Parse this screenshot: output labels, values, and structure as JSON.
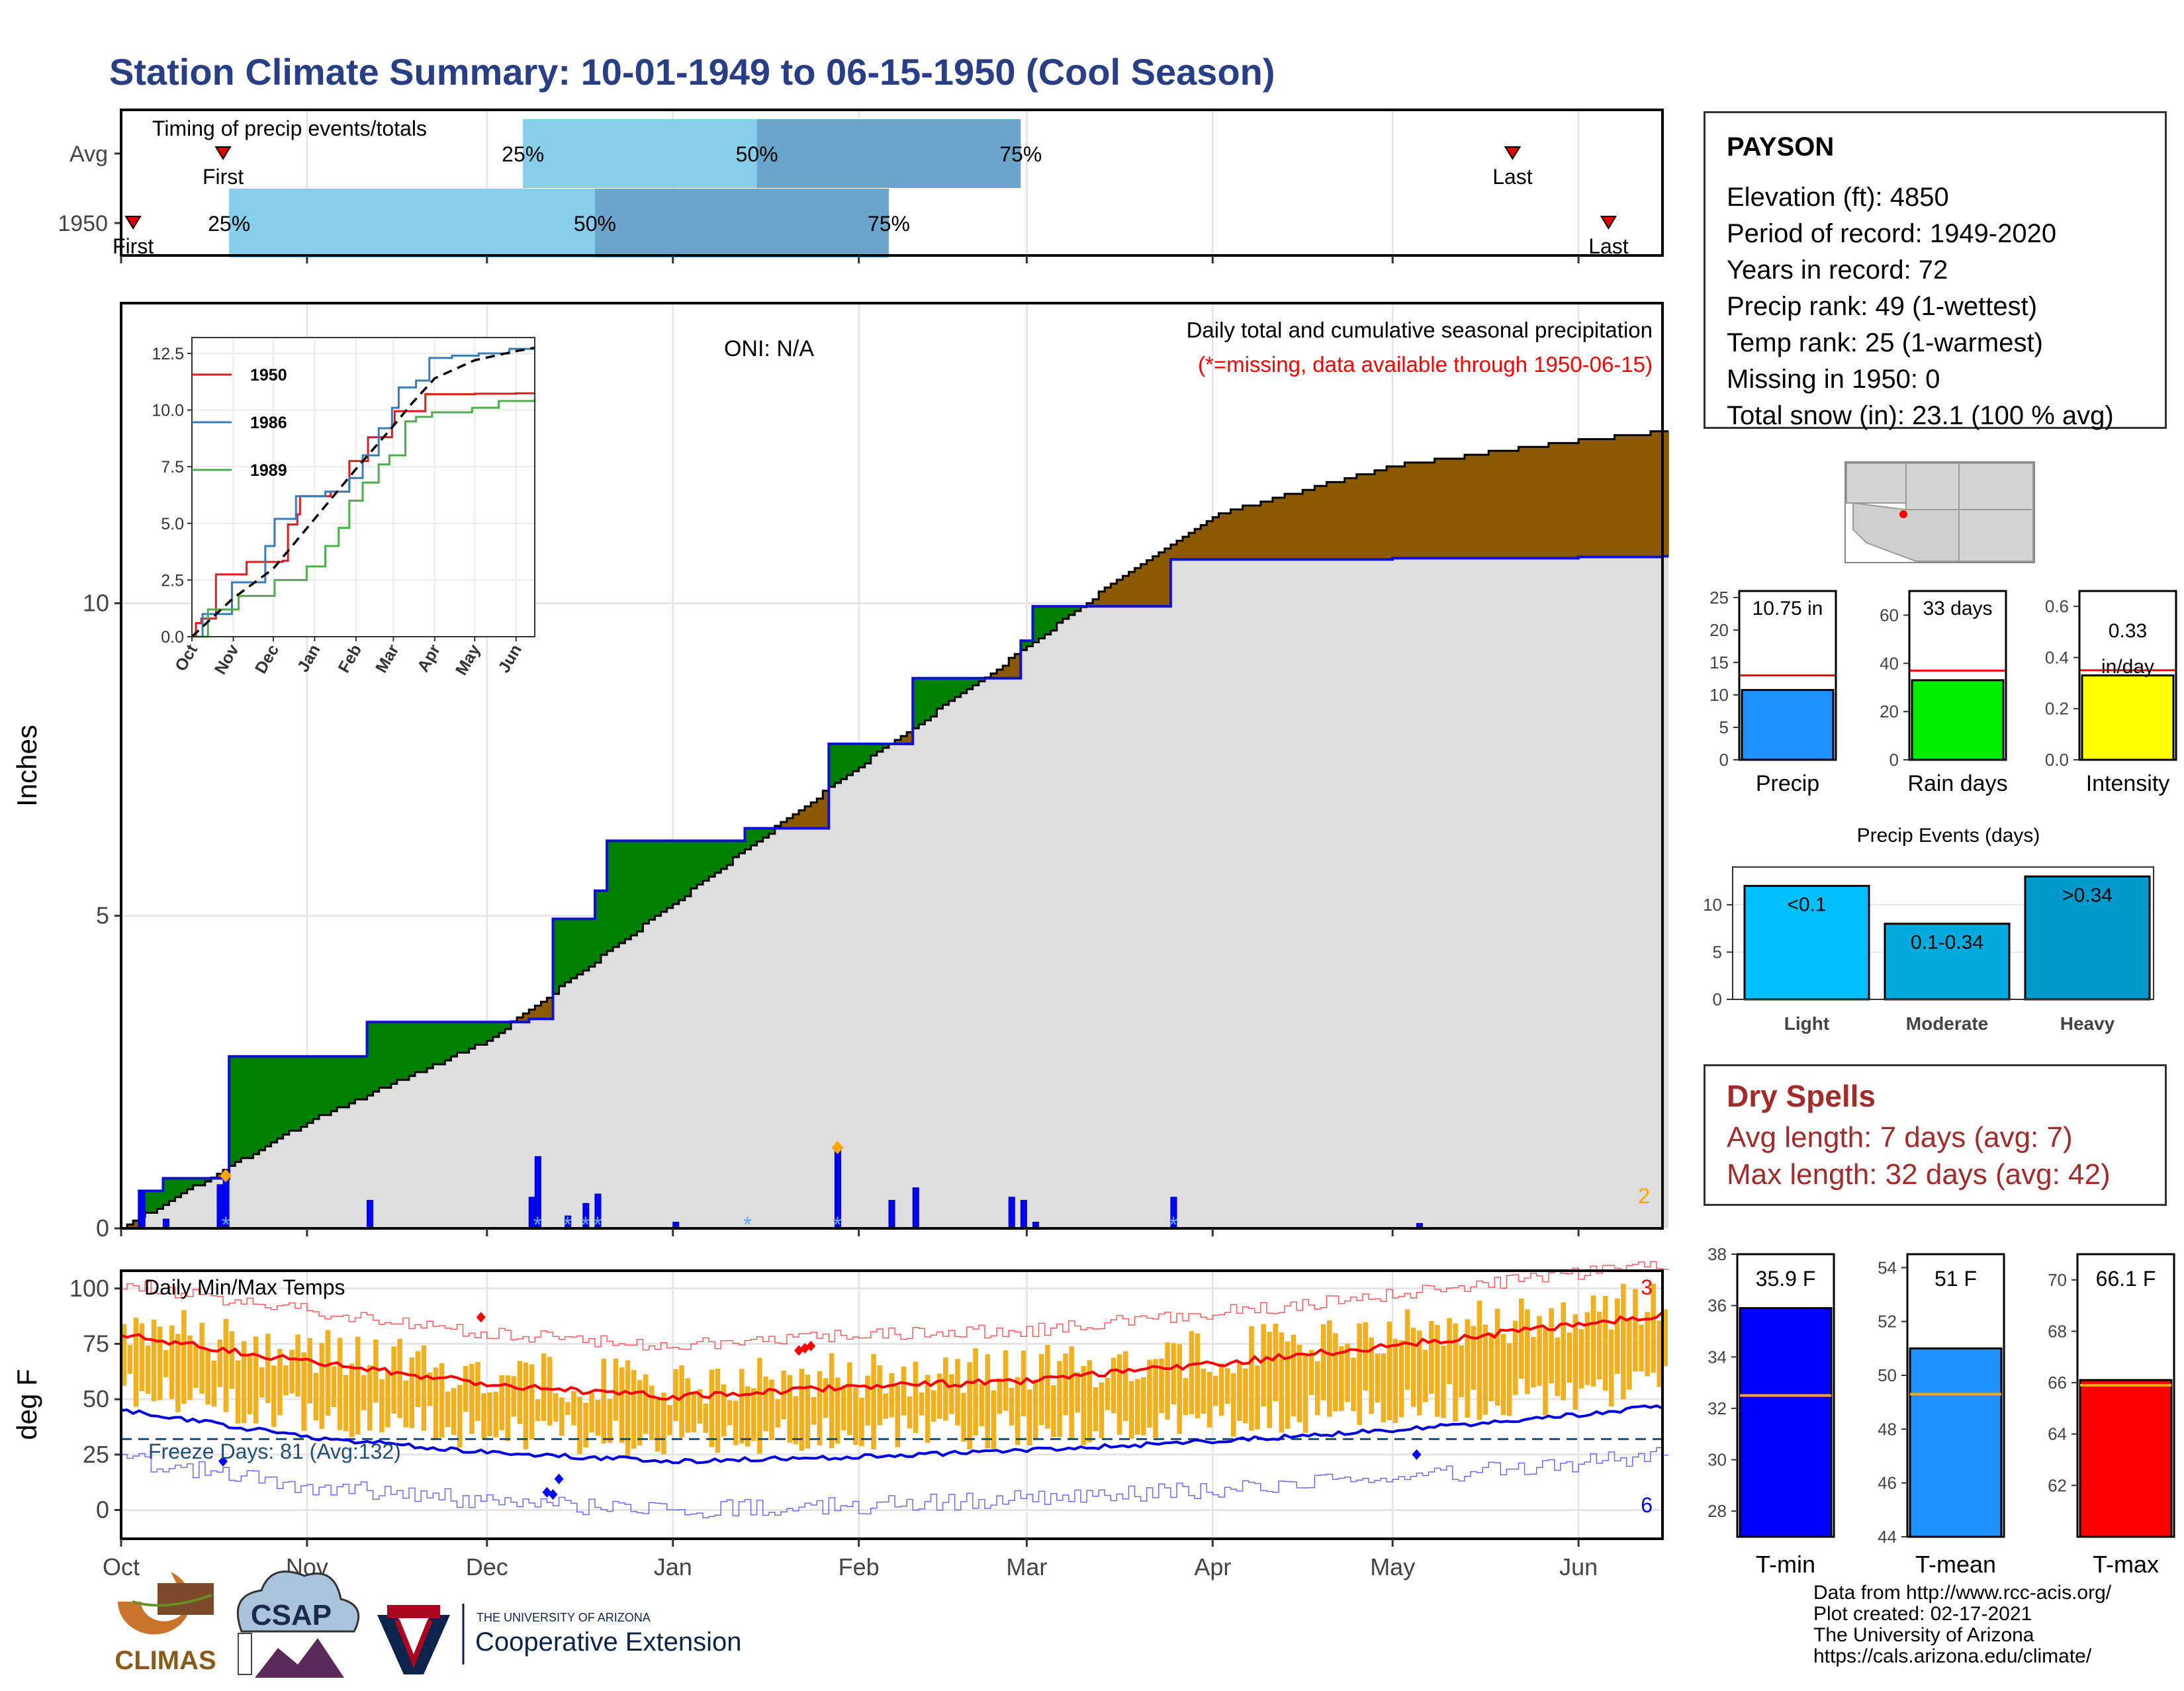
{
  "title": "Station Climate Summary: 10-01-1949 to 06-15-1950 (Cool Season)",
  "colors": {
    "title": "#283e86",
    "ahead": "#008000",
    "behind": "#8b5a00",
    "cumulative_fill": "#dedede",
    "avg_line": "#1010d0",
    "bar_blue": "#0000ff",
    "light_blue": "#87ceeb",
    "mid_blue": "#6aa5cc",
    "temp_bar": "#f0b020",
    "tmax_line": "#ff0000",
    "tmin_line": "#0000dd",
    "orange": "#ffa500",
    "dry": "#a52a2a",
    "rain_green": "#00ee00",
    "intensity_yellow": "#ffff00",
    "precip_blue": "#1e90ff"
  },
  "timing": {
    "title": "Timing of precip events/totals",
    "rows": [
      {
        "label": "Avg",
        "first": "1949-10-18",
        "q25": "1949-12-07",
        "q50": "1950-01-15",
        "q75": "1950-02-28",
        "last": "1950-05-21"
      },
      {
        "label": "1950",
        "first": "1949-10-03",
        "q25": "1949-10-19",
        "q50": "1949-12-19",
        "q75": "1950-02-06",
        "last": "1950-06-06"
      }
    ],
    "first_label": "First",
    "last_label": "Last",
    "q25_label": "25%",
    "q50_label": "50%",
    "q75_label": "75%"
  },
  "main": {
    "ylabel": "Inches",
    "oni": "ONI: N/A",
    "caption": "Daily total and cumulative seasonal precipitation",
    "missing_note": "(*=missing, data available through 1950-06-15)",
    "corner_count": "2",
    "y_ticks": [
      "0",
      "5",
      "10"
    ],
    "x_ticks": [
      "Oct",
      "Nov",
      "Dec",
      "Jan",
      "Feb",
      "Mar",
      "Apr",
      "May",
      "Jun"
    ]
  },
  "inset": {
    "legend": [
      "1950",
      "1986",
      "1989"
    ],
    "y_ticks": [
      "0.0",
      "2.5",
      "5.0",
      "7.5",
      "10.0",
      "12.5"
    ],
    "x_ticks": [
      "Oct",
      "Nov",
      "Dec",
      "Jan",
      "Feb",
      "Mar",
      "Apr",
      "May",
      "Jun"
    ]
  },
  "temps": {
    "caption": "Daily Min/Max Temps",
    "ylabel": "deg F",
    "freeze": "Freeze Days: 81 (Avg:132)",
    "count_top": "3",
    "count_bottom": "6",
    "y_ticks": [
      "0",
      "25",
      "50",
      "75",
      "100"
    ]
  },
  "station": {
    "name": "PAYSON",
    "lines": [
      "Elevation (ft): 4850",
      "Period of record: 1949-2020",
      "Years in record: 72",
      "Precip rank: 49 (1-wettest)",
      "Temp rank: 25 (1-warmest)",
      "Missing in 1950: 0",
      "Total snow (in): 23.1 (100 % avg)"
    ]
  },
  "summary_bars": [
    {
      "label": "Precip",
      "value_label": "10.75 in",
      "value": 10.75,
      "avg": 13,
      "ymax": 26,
      "ticks": [
        "0",
        "5",
        "10",
        "15",
        "20",
        "25"
      ]
    },
    {
      "label": "Rain days",
      "value_label": "33 days",
      "value": 33,
      "avg": 37,
      "ymax": 70,
      "ticks": [
        "0",
        "20",
        "40",
        "60"
      ]
    },
    {
      "label": "Intensity",
      "value_label": "0.33",
      "value_label2": "in/day",
      "value": 0.33,
      "avg": 0.35,
      "ymax": 0.66,
      "ticks": [
        "0.0",
        "0.2",
        "0.4",
        "0.6"
      ]
    }
  ],
  "events": {
    "title": "Precip Events (days)",
    "bars": [
      {
        "label": "Light",
        "range": "<0.1",
        "value": 12
      },
      {
        "label": "Moderate",
        "range": "0.1-0.34",
        "value": 8
      },
      {
        "label": "Heavy",
        "range": ">0.34",
        "value": 13
      }
    ],
    "ticks": [
      "0",
      "5",
      "10"
    ]
  },
  "dry_spells": {
    "title": "Dry Spells",
    "lines": [
      "Avg length: 7 days (avg: 7)",
      "Max length: 32 days (avg: 42)"
    ]
  },
  "temp_bars": [
    {
      "label": "T-min",
      "value_label": "35.9 F",
      "value": 35.9,
      "avg": 32.5,
      "ymin": 27,
      "ymax": 38,
      "ticks": [
        "28",
        "30",
        "32",
        "34",
        "36",
        "38"
      ],
      "tickvals": [
        28,
        30,
        32,
        34,
        36,
        38
      ]
    },
    {
      "label": "T-mean",
      "value_label": "51 F",
      "value": 51,
      "avg": 49.3,
      "ymin": 44,
      "ymax": 54.5,
      "ticks": [
        "44",
        "46",
        "48",
        "50",
        "52",
        "54"
      ],
      "tickvals": [
        44,
        46,
        48,
        50,
        52,
        54
      ]
    },
    {
      "label": "T-max",
      "value_label": "66.1 F",
      "value": 66.1,
      "avg": 65.9,
      "ymin": 60,
      "ymax": 71,
      "ticks": [
        "62",
        "64",
        "66",
        "68",
        "70"
      ],
      "tickvals": [
        62,
        64,
        66,
        68,
        70
      ]
    }
  ],
  "logos": {
    "climas": "CLIMAS",
    "csap": "CSAP",
    "ua_small": "THE UNIVERSITY OF ARIZONA",
    "ua_big": "Cooperative Extension"
  },
  "footer": [
    "Data from http://www.rcc-acis.org/",
    "Plot created: 02-17-2021",
    "The University of Arizona",
    "https://cals.arizona.edu/climate/"
  ],
  "chart_data": {
    "type": "area",
    "title": "Daily total and cumulative seasonal precipitation",
    "ylabel": "Inches",
    "ylim": [
      0,
      12.7
    ],
    "x_range": [
      "1949-10-01",
      "1950-06-15"
    ],
    "series": [
      {
        "name": "1950",
        "x": [
          "1949-10-01",
          "1949-10-04",
          "1949-10-08",
          "1949-10-17",
          "1949-10-19",
          "1949-11-11",
          "1949-12-08",
          "1949-12-12",
          "1949-12-19",
          "1949-12-21",
          "1950-01-13",
          "1950-01-27",
          "1950-02-10",
          "1950-02-28",
          "1950-03-02",
          "1950-03-25",
          "1950-04-01",
          "1950-05-01",
          "1950-06-01",
          "1950-06-15"
        ],
        "values": [
          0,
          0.6,
          0.8,
          0.8,
          2.75,
          3.3,
          3.35,
          4.95,
          5.4,
          6.2,
          6.4,
          7.75,
          8.8,
          9.4,
          9.95,
          10.7,
          10.7,
          10.72,
          10.74,
          10.75
        ]
      },
      {
        "name": "Average",
        "x": [
          "1949-10-01",
          "1949-11-01",
          "1949-12-01",
          "1950-01-01",
          "1950-02-01",
          "1950-03-01",
          "1950-03-15",
          "1950-04-01",
          "1950-05-01",
          "1950-06-01",
          "1950-06-15"
        ],
        "values": [
          0,
          1.7,
          3.0,
          5.2,
          7.4,
          9.3,
          10.3,
          11.4,
          12.2,
          12.6,
          12.75
        ]
      }
    ],
    "daily_precip": [
      {
        "x": "1949-10-04",
        "value": 0.6
      },
      {
        "x": "1949-10-08",
        "value": 0.15
      },
      {
        "x": "1949-10-17",
        "value": 0.7
      },
      {
        "x": "1949-10-18",
        "value": 0.8
      },
      {
        "x": "1949-11-11",
        "value": 0.45
      },
      {
        "x": "1949-12-08",
        "value": 0.5
      },
      {
        "x": "1949-12-09",
        "value": 1.15
      },
      {
        "x": "1949-12-14",
        "value": 0.2
      },
      {
        "x": "1949-12-17",
        "value": 0.4
      },
      {
        "x": "1949-12-19",
        "value": 0.55
      },
      {
        "x": "1950-01-01",
        "value": 0.1
      },
      {
        "x": "1950-01-28",
        "value": 1.25
      },
      {
        "x": "1950-02-06",
        "value": 0.45
      },
      {
        "x": "1950-02-10",
        "value": 0.65
      },
      {
        "x": "1950-02-26",
        "value": 0.5
      },
      {
        "x": "1950-02-28",
        "value": 0.45
      },
      {
        "x": "1950-03-02",
        "value": 0.1
      },
      {
        "x": "1950-03-25",
        "value": 0.5
      },
      {
        "x": "1950-05-05",
        "value": 0.08
      }
    ]
  }
}
